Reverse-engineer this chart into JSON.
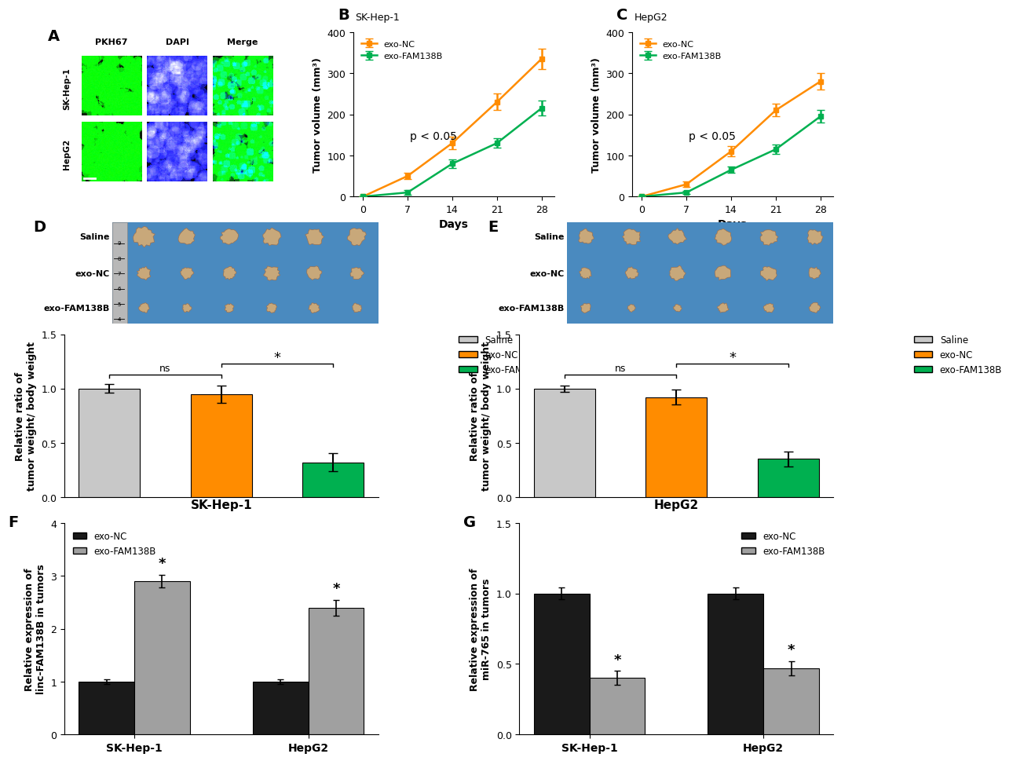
{
  "B_title": "SK-Hep-1",
  "C_title": "HepG2",
  "B_ylabel": "Tumor volume (mm³)",
  "C_ylabel": "Tumor volume (mm³)",
  "BC_xlabel": "Days",
  "BC_days": [
    0,
    7,
    14,
    21,
    28
  ],
  "B_exo_NC_mean": [
    0,
    50,
    130,
    230,
    335
  ],
  "B_exo_NC_err": [
    0,
    8,
    15,
    20,
    25
  ],
  "B_exo_FAM138B_mean": [
    0,
    10,
    80,
    130,
    215
  ],
  "B_exo_FAM138B_err": [
    0,
    5,
    10,
    12,
    18
  ],
  "C_exo_NC_mean": [
    0,
    30,
    110,
    210,
    280
  ],
  "C_exo_NC_err": [
    0,
    6,
    12,
    15,
    20
  ],
  "C_exo_FAM138B_mean": [
    0,
    10,
    65,
    115,
    195
  ],
  "C_exo_FAM138B_err": [
    0,
    4,
    8,
    12,
    15
  ],
  "BC_ylim": [
    0,
    400
  ],
  "BC_yticks": [
    0,
    100,
    200,
    300,
    400
  ],
  "p_text": "p < 0.05",
  "D_categories": [
    "Saline",
    "exo-NC",
    "exo-FAM138B"
  ],
  "D_values": [
    1.0,
    0.95,
    0.32
  ],
  "D_errors": [
    0.04,
    0.08,
    0.08
  ],
  "D_colors": [
    "#c8c8c8",
    "#ff8c00",
    "#00b050"
  ],
  "D_ylabel": "Relative ratio of\ntumor weight/ body weight",
  "D_xlabel": "SK-Hep-1",
  "D_ylim": [
    0,
    1.5
  ],
  "D_yticks": [
    0.0,
    0.5,
    1.0,
    1.5
  ],
  "E_categories": [
    "Saline",
    "exo-NC",
    "exo-FAM138B"
  ],
  "E_values": [
    1.0,
    0.92,
    0.35
  ],
  "E_errors": [
    0.03,
    0.07,
    0.07
  ],
  "E_colors": [
    "#c8c8c8",
    "#ff8c00",
    "#00b050"
  ],
  "E_ylabel": "Relative ratio of\ntumor weight/ body weight",
  "E_xlabel": "HepG2",
  "E_ylim": [
    0,
    1.5
  ],
  "E_yticks": [
    0.0,
    0.5,
    1.0,
    1.5
  ],
  "F_groups": [
    "SK-Hep-1",
    "HepG2"
  ],
  "F_exo_NC": [
    1.0,
    1.0
  ],
  "F_exo_FAM138B": [
    2.9,
    2.4
  ],
  "F_exo_NC_err": [
    0.05,
    0.05
  ],
  "F_exo_FAM138B_err": [
    0.12,
    0.15
  ],
  "F_ylabel": "Relative expression of\nlinc-FAM138B in tumors",
  "F_ylim": [
    0,
    4
  ],
  "F_yticks": [
    0,
    1,
    2,
    3,
    4
  ],
  "F_colors": [
    "#1a1a1a",
    "#a0a0a0"
  ],
  "G_groups": [
    "SK-Hep-1",
    "HepG2"
  ],
  "G_exo_NC": [
    1.0,
    1.0
  ],
  "G_exo_FAM138B": [
    0.4,
    0.47
  ],
  "G_exo_NC_err": [
    0.04,
    0.04
  ],
  "G_exo_FAM138B_err": [
    0.05,
    0.05
  ],
  "G_ylabel": "Relative expression of\nmiR-765 in tumors",
  "G_ylim": [
    0,
    1.5
  ],
  "G_yticks": [
    0,
    0.5,
    1.0,
    1.5
  ],
  "G_colors": [
    "#1a1a1a",
    "#a0a0a0"
  ],
  "orange_color": "#ff8c00",
  "green_color": "#00b050",
  "background_color": "#ffffff",
  "A_col_labels": [
    "PKH67",
    "DAPI",
    "Merge"
  ],
  "A_row_labels": [
    "SK-Hep-1",
    "HepG2"
  ],
  "D_row_labels": [
    "Saline",
    "exo-NC",
    "exo-FAM138B"
  ],
  "E_row_labels": [
    "Saline",
    "exo-NC",
    "exo-FAM138B"
  ]
}
